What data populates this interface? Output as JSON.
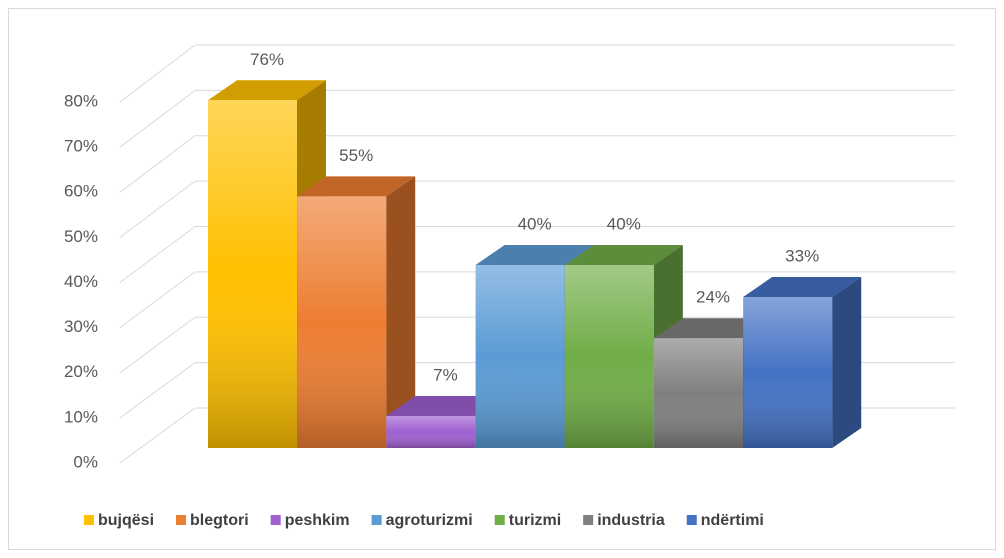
{
  "chart_data": {
    "type": "bar3d",
    "categories": [
      "bujqësi",
      "blegtori",
      "peshkim",
      "agroturizmi",
      "turizmi",
      "industria",
      "ndërtimi"
    ],
    "values": [
      76,
      55,
      7,
      40,
      40,
      24,
      33
    ],
    "value_labels": [
      "76%",
      "55%",
      "7%",
      "40%",
      "40%",
      "24%",
      "33%"
    ],
    "colors": [
      "#ffc000",
      "#ed7d31",
      "#9e5fd0",
      "#5b9bd5",
      "#70ad47",
      "#7f7f7f",
      "#4472c4"
    ],
    "ylim": [
      0,
      80
    ],
    "yticks": [
      {
        "value": 0,
        "label": "0%"
      },
      {
        "value": 10,
        "label": "10%"
      },
      {
        "value": 20,
        "label": "20%"
      },
      {
        "value": 30,
        "label": "30%"
      },
      {
        "value": 40,
        "label": "40%"
      },
      {
        "value": 50,
        "label": "50%"
      },
      {
        "value": 60,
        "label": "60%"
      },
      {
        "value": 70,
        "label": "70%"
      },
      {
        "value": 80,
        "label": "80%"
      }
    ],
    "grid": true,
    "legend": "bottom"
  }
}
